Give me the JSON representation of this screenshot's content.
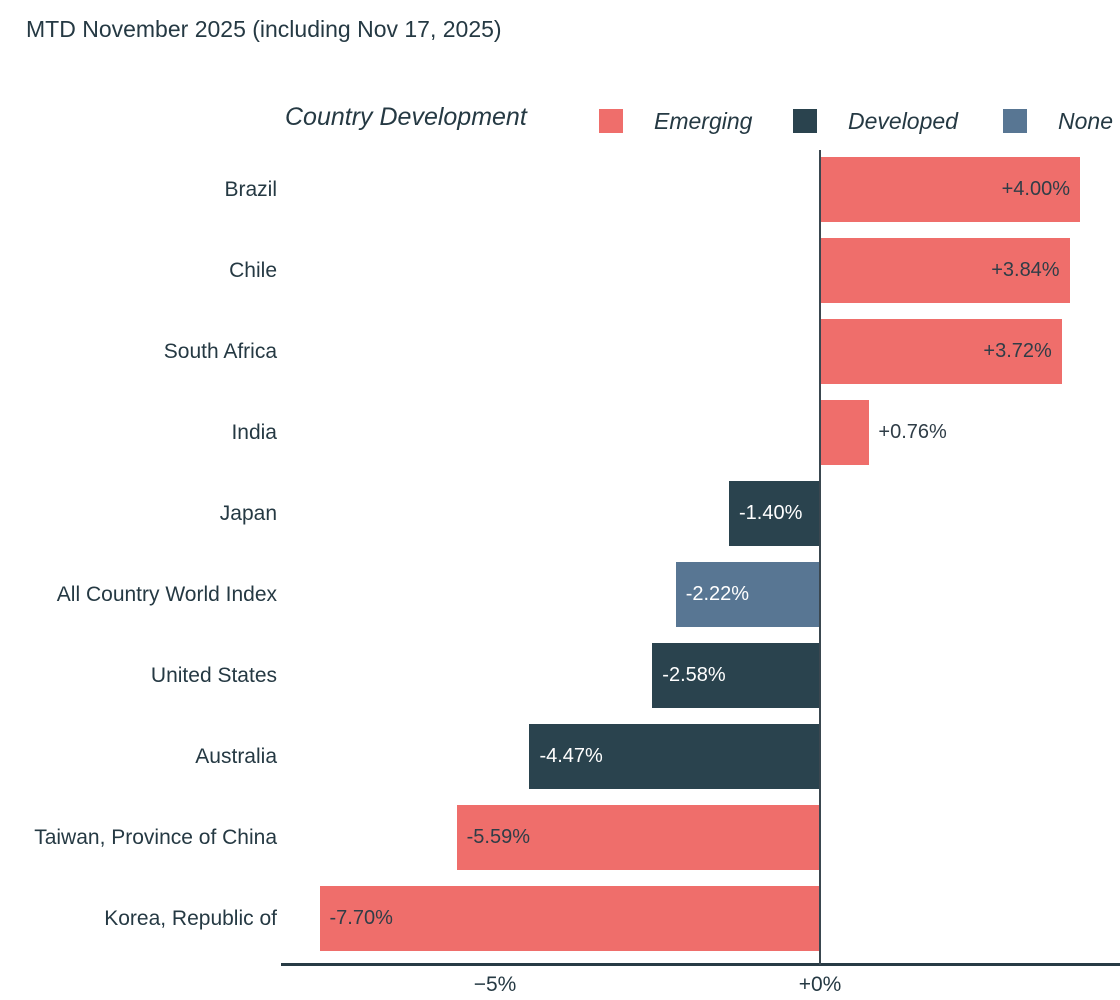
{
  "title": "MTD November 2025 (including Nov 17, 2025)",
  "legend": {
    "title": "Country Development",
    "items": [
      {
        "label": "Emerging",
        "color": "#ef6e6b",
        "value_text_color": "#2f3d47"
      },
      {
        "label": "Developed",
        "color": "#2a434e",
        "value_text_color": "#ffffff"
      },
      {
        "label": "None",
        "color": "#587693",
        "value_text_color": "#ffffff"
      }
    ]
  },
  "chart_data": {
    "type": "bar",
    "orientation": "horizontal",
    "title": "MTD November 2025 (including Nov 17, 2025)",
    "legend_title": "Country Development",
    "legend_position": "top",
    "legend_entries": [
      "Emerging",
      "Developed",
      "None"
    ],
    "xlabel": "",
    "ylabel": "",
    "xlim": [
      -8.3,
      4.6
    ],
    "grid": false,
    "x_ticks": [
      {
        "value": -5,
        "label": "−5%"
      },
      {
        "value": 0,
        "label": "+0%"
      }
    ],
    "rows": [
      {
        "category": "Brazil",
        "value": 4.0,
        "label": "+4.00%",
        "group": "Emerging"
      },
      {
        "category": "Chile",
        "value": 3.84,
        "label": "+3.84%",
        "group": "Emerging"
      },
      {
        "category": "South Africa",
        "value": 3.72,
        "label": "+3.72%",
        "group": "Emerging"
      },
      {
        "category": "India",
        "value": 0.76,
        "label": "+0.76%",
        "group": "Emerging"
      },
      {
        "category": "Japan",
        "value": -1.4,
        "label": "-1.40%",
        "group": "Developed"
      },
      {
        "category": "All Country World Index",
        "value": -2.22,
        "label": "-2.22%",
        "group": "None"
      },
      {
        "category": "United States",
        "value": -2.58,
        "label": "-2.58%",
        "group": "Developed"
      },
      {
        "category": "Australia",
        "value": -4.47,
        "label": "-4.47%",
        "group": "Developed"
      },
      {
        "category": "Taiwan, Province of China",
        "value": -5.59,
        "label": "-5.59%",
        "group": "Emerging"
      },
      {
        "category": "Korea, Republic of",
        "value": -7.7,
        "label": "-7.70%",
        "group": "Emerging"
      }
    ]
  }
}
